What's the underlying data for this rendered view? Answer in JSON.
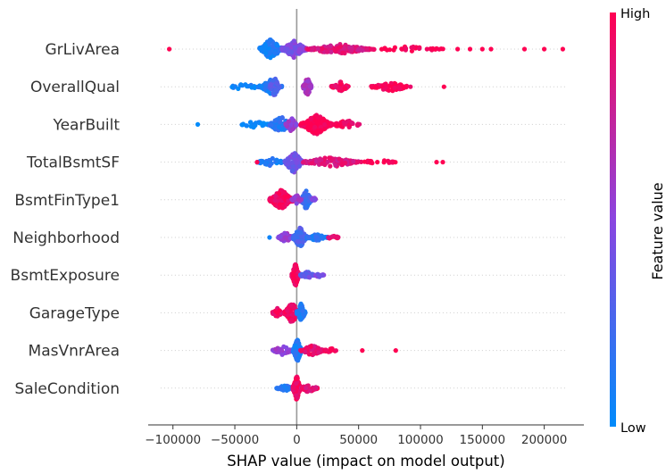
{
  "chart_data": {
    "type": "scatter",
    "subtype": "shap-beeswarm",
    "title": "",
    "xlabel": "SHAP value (impact on model output)",
    "xlim": [
      -120000,
      232000
    ],
    "xticks": [
      -100000,
      -50000,
      0,
      50000,
      100000,
      150000,
      200000
    ],
    "xtick_labels": [
      "−100000",
      "−50000",
      "0",
      "50000",
      "100000",
      "150000",
      "200000"
    ],
    "grid": "horizontal dotted per feature",
    "colorbar": {
      "label": "Feature value",
      "high_label": "High",
      "low_label": "Low",
      "low_color": "#008bfb",
      "high_color": "#ff0052"
    },
    "features": [
      {
        "name": "GrLivArea",
        "clusters": [
          [
            -30000,
            -12000,
            130,
            0.1,
            12
          ],
          [
            -12000,
            8000,
            110,
            0.45,
            10
          ],
          [
            8000,
            60000,
            150,
            0.85,
            6
          ],
          [
            60000,
            120000,
            35,
            1.0,
            3
          ]
        ],
        "outliers": [
          [
            -103000,
            1.0
          ],
          [
            130000,
            1.0
          ],
          [
            140000,
            1.0
          ],
          [
            150000,
            1.0
          ],
          [
            157000,
            1.0
          ],
          [
            184000,
            1.0
          ],
          [
            200000,
            1.0
          ],
          [
            215000,
            1.0
          ]
        ]
      },
      {
        "name": "OverallQual",
        "clusters": [
          [
            -55000,
            -30000,
            20,
            0.05,
            4
          ],
          [
            -30000,
            -12000,
            50,
            0.1,
            8
          ],
          [
            -22000,
            -14000,
            60,
            0.3,
            11
          ],
          [
            5000,
            12000,
            60,
            0.6,
            11
          ],
          [
            28000,
            42000,
            40,
            0.95,
            6
          ],
          [
            60000,
            92000,
            70,
            1.0,
            5
          ]
        ],
        "outliers": [
          [
            119000,
            1.0
          ]
        ]
      },
      {
        "name": "YearBuilt",
        "clusters": [
          [
            -45000,
            -22000,
            30,
            0.05,
            4
          ],
          [
            -22000,
            -5000,
            90,
            0.15,
            10
          ],
          [
            -9000,
            0,
            60,
            0.55,
            8
          ],
          [
            3000,
            28000,
            140,
            1.0,
            12
          ],
          [
            28000,
            52000,
            40,
            0.95,
            5
          ]
        ],
        "outliers": [
          [
            -80000,
            0.0
          ]
        ]
      },
      {
        "name": "TotalBsmtSF",
        "clusters": [
          [
            -32000,
            -10000,
            40,
            0.1,
            5
          ],
          [
            -10000,
            5000,
            110,
            0.4,
            12
          ],
          [
            5000,
            50000,
            120,
            0.85,
            6
          ],
          [
            50000,
            80000,
            20,
            1.0,
            3
          ]
        ],
        "outliers": [
          [
            -32000,
            1.0
          ],
          [
            113000,
            1.0
          ],
          [
            118000,
            1.0
          ]
        ]
      },
      {
        "name": "BsmtFinType1",
        "clusters": [
          [
            -22000,
            -3000,
            160,
            0.95,
            12
          ],
          [
            3000,
            12000,
            100,
            0.2,
            11
          ],
          [
            -4000,
            4000,
            20,
            0.55,
            6
          ],
          [
            12000,
            16000,
            10,
            0.5,
            4
          ]
        ],
        "outliers": []
      },
      {
        "name": "Neighborhood",
        "clusters": [
          [
            -15000,
            -3000,
            50,
            0.55,
            6
          ],
          [
            -3000,
            8000,
            130,
            0.25,
            12
          ],
          [
            8000,
            25000,
            50,
            0.15,
            4
          ],
          [
            25000,
            34000,
            15,
            0.9,
            3
          ]
        ],
        "outliers": [
          [
            -22000,
            0.05
          ]
        ]
      },
      {
        "name": "BsmtExposure",
        "clusters": [
          [
            -4000,
            2000,
            150,
            0.95,
            13
          ],
          [
            2000,
            15000,
            50,
            0.35,
            4
          ],
          [
            15000,
            22000,
            15,
            0.45,
            3
          ]
        ],
        "outliers": []
      },
      {
        "name": "GarageType",
        "clusters": [
          [
            -20000,
            -12000,
            40,
            0.95,
            6
          ],
          [
            -10000,
            2000,
            110,
            0.95,
            12
          ],
          [
            0,
            7000,
            70,
            0.1,
            11
          ]
        ],
        "outliers": []
      },
      {
        "name": "MasVnrArea",
        "clusters": [
          [
            -20000,
            -3000,
            50,
            0.55,
            5
          ],
          [
            -3000,
            4000,
            160,
            0.1,
            13
          ],
          [
            3000,
            22000,
            70,
            0.9,
            6
          ],
          [
            22000,
            32000,
            15,
            1.0,
            3
          ]
        ],
        "outliers": [
          [
            53000,
            1.0
          ],
          [
            80000,
            1.0
          ]
        ]
      },
      {
        "name": "SaleCondition",
        "clusters": [
          [
            -17000,
            -3000,
            40,
            0.15,
            4
          ],
          [
            -3000,
            3000,
            170,
            0.95,
            14
          ],
          [
            3000,
            17000,
            50,
            0.9,
            5
          ]
        ],
        "outliers": []
      }
    ]
  }
}
